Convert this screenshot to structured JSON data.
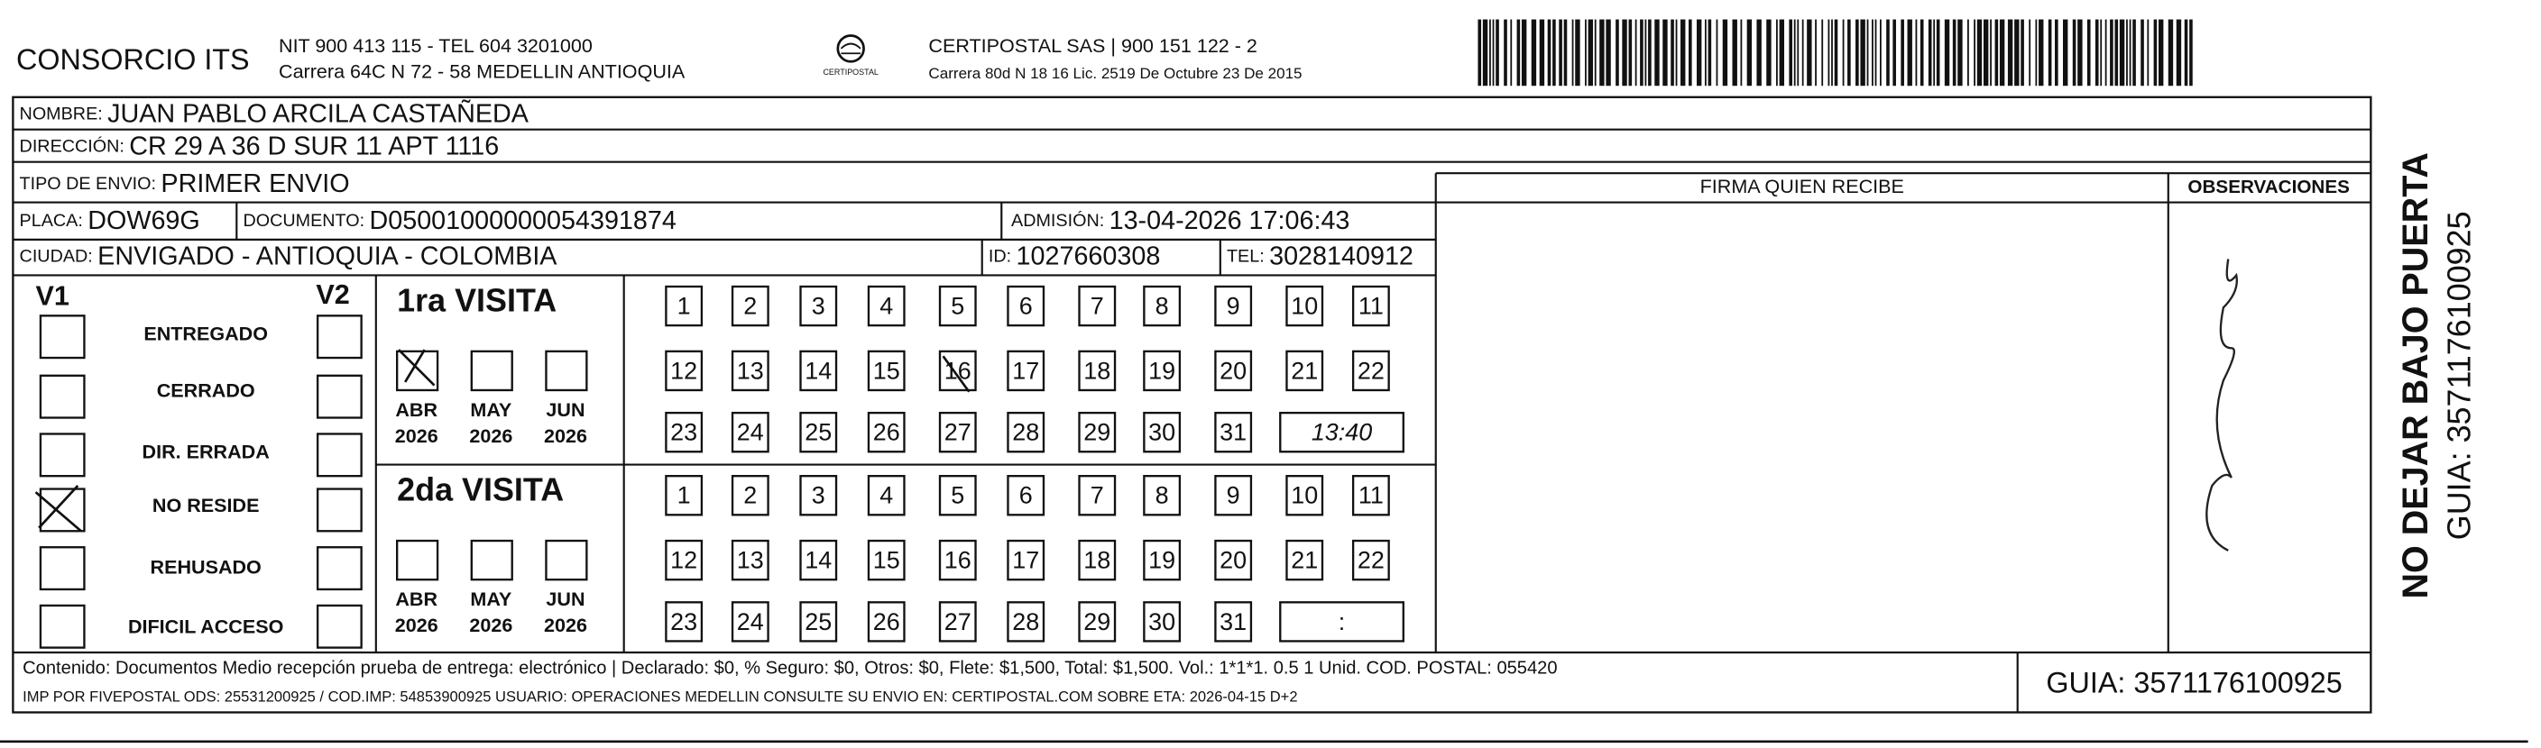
{
  "header": {
    "company": "CONSORCIO ITS",
    "nit": "NIT 900 413 115 - TEL 604 3201000",
    "address": "Carrera 64C N 72 - 58 MEDELLIN ANTIOQUIA",
    "logo_text": "CERTIPOSTAL",
    "carrier": "CERTIPOSTAL SAS | 900 151 122 - 2",
    "carrier_address": "Carrera 80d N 18 16  Lic. 2519 De Octubre 23 De 2015"
  },
  "fields": {
    "nombre": {
      "label": "NOMBRE:",
      "value": "JUAN PABLO ARCILA CASTAÑEDA"
    },
    "direccion": {
      "label": "DIRECCIÓN:",
      "value": "CR 29 A 36 D SUR 11 APT 1116"
    },
    "tipo": {
      "label": "TIPO DE ENVIO:",
      "value": "PRIMER ENVIO"
    },
    "placa": {
      "label": "PLACA:",
      "value": "DOW69G"
    },
    "documento": {
      "label": "DOCUMENTO:",
      "value": "D05001000000054391874"
    },
    "admision": {
      "label": "ADMISIÓN:",
      "value": "13-04-2026 17:06:43"
    },
    "ciudad": {
      "label": "CIUDAD:",
      "value": "ENVIGADO - ANTIOQUIA - COLOMBIA"
    },
    "id": {
      "label": "ID:",
      "value": "1027660308"
    },
    "tel": {
      "label": "TEL:",
      "value": "3028140912"
    }
  },
  "signature": {
    "firma_heading": "FIRMA QUIEN RECIBE",
    "observaciones_heading": "OBSERVACIONES"
  },
  "status": {
    "v1": "V1",
    "v2": "V2",
    "options": [
      "ENTREGADO",
      "CERRADO",
      "DIR. ERRADA",
      "NO RESIDE",
      "REHUSADO",
      "DIFICIL ACCESO"
    ]
  },
  "visits": [
    {
      "label": "1ra VISITA",
      "months": [
        {
          "month": "ABR",
          "year": "2026"
        },
        {
          "month": "MAY",
          "year": "2026"
        },
        {
          "month": "JUN",
          "year": "2026"
        }
      ],
      "days": [
        "1",
        "2",
        "3",
        "4",
        "5",
        "6",
        "7",
        "8",
        "9",
        "10",
        "11",
        "12",
        "13",
        "14",
        "15",
        "16",
        "17",
        "18",
        "19",
        "20",
        "21",
        "22",
        "23",
        "24",
        "25",
        "26",
        "27",
        "28",
        "29",
        "30",
        "31"
      ],
      "time": "13:40"
    },
    {
      "label": "2da VISITA",
      "months": [
        {
          "month": "ABR",
          "year": "2026"
        },
        {
          "month": "MAY",
          "year": "2026"
        },
        {
          "month": "JUN",
          "year": "2026"
        }
      ],
      "days": [
        "1",
        "2",
        "3",
        "4",
        "5",
        "6",
        "7",
        "8",
        "9",
        "10",
        "11",
        "12",
        "13",
        "14",
        "15",
        "16",
        "17",
        "18",
        "19",
        "20",
        "21",
        "22",
        "23",
        "24",
        "25",
        "26",
        "27",
        "28",
        "29",
        "30",
        "31"
      ],
      "time": ":"
    }
  ],
  "footer": {
    "contenido": "Contenido: Documentos Medio recepción prueba de entrega: electrónico | Declarado: $0, % Seguro: $0, Otros: $0, Flete: $1,500, Total: $1,500. Vol.: 1*1*1. 0.5  1 Unid. COD. POSTAL: 055420",
    "imp": "IMP POR FIVEPOSTAL ODS: 25531200925 / COD.IMP: 54853900925 USUARIO: OPERACIONES MEDELLIN CONSULTE SU ENVIO EN: CERTIPOSTAL.COM SOBRE ETA: 2026-04-15 D+2",
    "guia": "GUIA: 3571176100925"
  },
  "side": {
    "warning": "NO DEJAR BAJO PUERTA",
    "guia": "GUIA: 3571176100925"
  }
}
